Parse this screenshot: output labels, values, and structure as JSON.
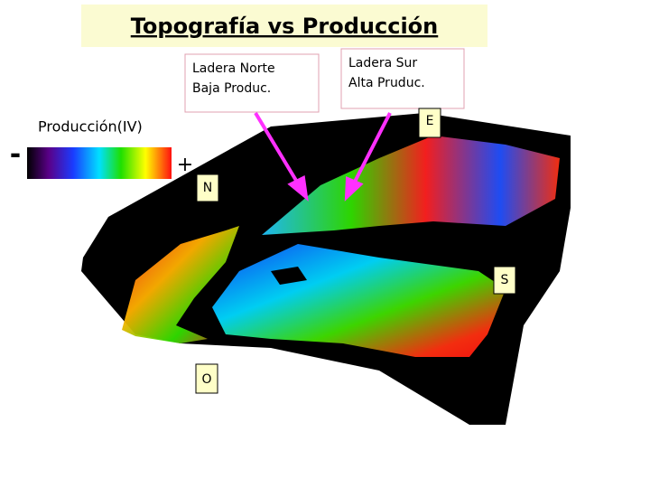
{
  "title": "Topografía vs Producción",
  "callouts": [
    {
      "lines": [
        "Ladera Norte",
        "Baja Produc."
      ]
    },
    {
      "lines": [
        "Ladera Sur",
        "Alta Pruduc."
      ]
    }
  ],
  "legend": {
    "label": "Producción(IV)",
    "min": "-",
    "max": "+"
  },
  "directions": {
    "north": "N",
    "east": "E",
    "south": "S",
    "west": "O"
  }
}
